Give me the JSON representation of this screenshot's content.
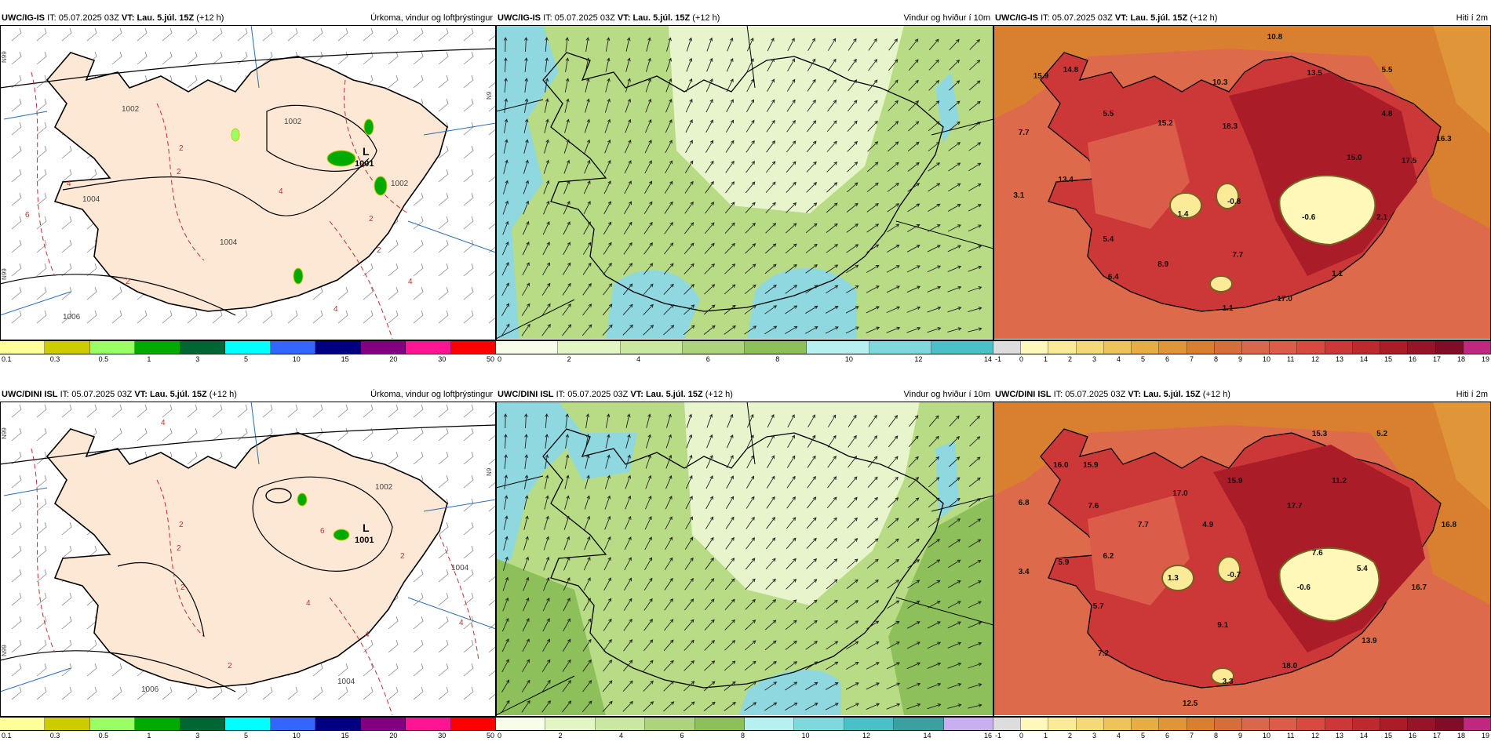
{
  "rows": [
    {
      "model": "UWC/IG-IS",
      "it_label": "IT:",
      "it_value": "05.07.2025 03Z",
      "vt_label": "VT:",
      "vt_value": "Lau. 5.júl. 15Z",
      "lead": "(+12 h)",
      "panels": [
        {
          "title": "Úrkoma, vindur og loftþrýstingur",
          "low_label": "L",
          "low_value": "1001",
          "isobars": [
            "1002",
            "1002",
            "1004",
            "1004",
            "1006",
            "1002"
          ],
          "temp_labels": [
            "2",
            "4",
            "6",
            "2",
            "4",
            "2",
            "4",
            "2",
            "2",
            "4"
          ],
          "grid_labels": [
            "N99",
            "N99",
            "N9"
          ],
          "legend_colors": [
            "#ffff99",
            "#cccc00",
            "#99ff66",
            "#00aa00",
            "#006633",
            "#00ffff",
            "#3366ff",
            "#000080",
            "#800080",
            "#ff1493",
            "#ff0000"
          ],
          "legend_ticks": [
            "0.1",
            "0.3",
            "0.5",
            "1",
            "3",
            "5",
            "10",
            "15",
            "20",
            "30",
            "50"
          ]
        },
        {
          "title": "Vindur og hviður í 10m",
          "legend_colors": [
            "#f7fde8",
            "#e4f5c4",
            "#cbe8a0",
            "#add47a",
            "#8dc05a",
            "#b7f0f0",
            "#7fd8dc",
            "#4cc0c8"
          ],
          "legend_ticks": [
            "0",
            "2",
            "4",
            "6",
            "8",
            "10",
            "12",
            "14"
          ]
        },
        {
          "title": "Hiti í 2m",
          "legend_colors": [
            "#dddddd",
            "#fff8b8",
            "#fbeb98",
            "#f5d878",
            "#efc35c",
            "#e8ac44",
            "#e09538",
            "#d88030",
            "#d46e3a",
            "#d9674a",
            "#dc5c4a",
            "#d84a40",
            "#cc3838",
            "#bc2a30",
            "#aa1c28",
            "#961428",
            "#800c28",
            "#c02880"
          ],
          "legend_ticks": [
            "-1",
            "0",
            "1",
            "2",
            "3",
            "4",
            "5",
            "6",
            "7",
            "8",
            "9",
            "10",
            "11",
            "12",
            "13",
            "14",
            "15",
            "16",
            "17",
            "18",
            "19"
          ],
          "values": [
            {
              "t": "10.8",
              "x": 0.55,
              "y": 0.025
            },
            {
              "t": "14.8",
              "x": 0.14,
              "y": 0.13
            },
            {
              "t": "15.9",
              "x": 0.08,
              "y": 0.15
            },
            {
              "t": "13.5",
              "x": 0.63,
              "y": 0.14
            },
            {
              "t": "5.5",
              "x": 0.78,
              "y": 0.13
            },
            {
              "t": "10.3",
              "x": 0.44,
              "y": 0.17
            },
            {
              "t": "5.5",
              "x": 0.22,
              "y": 0.27
            },
            {
              "t": "15.2",
              "x": 0.33,
              "y": 0.3
            },
            {
              "t": "18.3",
              "x": 0.46,
              "y": 0.31
            },
            {
              "t": "4.8",
              "x": 0.78,
              "y": 0.27
            },
            {
              "t": "7.7",
              "x": 0.05,
              "y": 0.33
            },
            {
              "t": "16.3",
              "x": 0.89,
              "y": 0.35
            },
            {
              "t": "15.0",
              "x": 0.71,
              "y": 0.41
            },
            {
              "t": "17.5",
              "x": 0.82,
              "y": 0.42
            },
            {
              "t": "13.4",
              "x": 0.13,
              "y": 0.48
            },
            {
              "t": "3.1",
              "x": 0.04,
              "y": 0.53
            },
            {
              "t": "-0.8",
              "x": 0.47,
              "y": 0.55
            },
            {
              "t": "1.4",
              "x": 0.37,
              "y": 0.59
            },
            {
              "t": "-0.6",
              "x": 0.62,
              "y": 0.6
            },
            {
              "t": "2.1",
              "x": 0.77,
              "y": 0.6
            },
            {
              "t": "5.4",
              "x": 0.22,
              "y": 0.67
            },
            {
              "t": "7.7",
              "x": 0.48,
              "y": 0.72
            },
            {
              "t": "8.9",
              "x": 0.33,
              "y": 0.75
            },
            {
              "t": "1.1",
              "x": 0.68,
              "y": 0.78
            },
            {
              "t": "6.4",
              "x": 0.23,
              "y": 0.79
            },
            {
              "t": "17.0",
              "x": 0.57,
              "y": 0.86
            },
            {
              "t": "1.1",
              "x": 0.46,
              "y": 0.89
            }
          ]
        }
      ]
    },
    {
      "model": "UWC/DINI ISL",
      "it_label": "IT:",
      "it_value": "05.07.2025 03Z",
      "vt_label": "VT:",
      "vt_value": "Lau. 5.júl. 15Z",
      "lead": "(+12 h)",
      "panels": [
        {
          "title": "Úrkoma, vindur og loftþrýstingur",
          "low_label": "L",
          "low_value": "1001",
          "isobars": [
            "1002",
            "1004",
            "1006",
            "1004"
          ],
          "temp_labels": [
            "2",
            "4",
            "6",
            "2",
            "4",
            "2",
            "4",
            "2",
            "4",
            "2"
          ],
          "grid_labels": [
            "N99",
            "N99",
            "N9"
          ],
          "legend_colors": [
            "#ffff99",
            "#cccc00",
            "#99ff66",
            "#00aa00",
            "#006633",
            "#00ffff",
            "#3366ff",
            "#000080",
            "#800080",
            "#ff1493",
            "#ff0000"
          ],
          "legend_ticks": [
            "0.1",
            "0.3",
            "0.5",
            "1",
            "3",
            "5",
            "10",
            "15",
            "20",
            "30",
            "50"
          ]
        },
        {
          "title": "Vindur og hviður í 10m",
          "legend_colors": [
            "#f7fde8",
            "#e4f5c4",
            "#cbe8a0",
            "#add47a",
            "#8dc05a",
            "#b7f0f0",
            "#7fd8dc",
            "#4cc0c8",
            "#3aa0a0",
            "#c8b0f0"
          ],
          "legend_ticks": [
            "0",
            "2",
            "4",
            "6",
            "8",
            "10",
            "12",
            "14",
            "16"
          ]
        },
        {
          "title": "Hiti í 2m",
          "legend_colors": [
            "#dddddd",
            "#fff8b8",
            "#fbeb98",
            "#f5d878",
            "#efc35c",
            "#e8ac44",
            "#e09538",
            "#d88030",
            "#d46e3a",
            "#d9674a",
            "#dc5c4a",
            "#d84a40",
            "#cc3838",
            "#bc2a30",
            "#aa1c28",
            "#961428",
            "#800c28",
            "#c02880"
          ],
          "legend_ticks": [
            "-1",
            "0",
            "1",
            "2",
            "3",
            "4",
            "5",
            "6",
            "7",
            "8",
            "9",
            "10",
            "11",
            "12",
            "13",
            "14",
            "15",
            "16",
            "17",
            "18",
            "19"
          ],
          "values": [
            {
              "t": "15.3",
              "x": 0.64,
              "y": 0.09
            },
            {
              "t": "5.2",
              "x": 0.77,
              "y": 0.09
            },
            {
              "t": "16.0",
              "x": 0.12,
              "y": 0.19
            },
            {
              "t": "15.9",
              "x": 0.18,
              "y": 0.19
            },
            {
              "t": "15.9",
              "x": 0.47,
              "y": 0.24
            },
            {
              "t": "11.2",
              "x": 0.68,
              "y": 0.24
            },
            {
              "t": "17.0",
              "x": 0.36,
              "y": 0.28
            },
            {
              "t": "6.8",
              "x": 0.05,
              "y": 0.31
            },
            {
              "t": "7.6",
              "x": 0.19,
              "y": 0.32
            },
            {
              "t": "17.7",
              "x": 0.59,
              "y": 0.32
            },
            {
              "t": "7.7",
              "x": 0.29,
              "y": 0.38
            },
            {
              "t": "4.9",
              "x": 0.42,
              "y": 0.38
            },
            {
              "t": "16.8",
              "x": 0.9,
              "y": 0.38
            },
            {
              "t": "7.6",
              "x": 0.64,
              "y": 0.47
            },
            {
              "t": "6.2",
              "x": 0.22,
              "y": 0.48
            },
            {
              "t": "5.9",
              "x": 0.13,
              "y": 0.5
            },
            {
              "t": "5.4",
              "x": 0.73,
              "y": 0.52
            },
            {
              "t": "3.4",
              "x": 0.05,
              "y": 0.53
            },
            {
              "t": "-0.7",
              "x": 0.47,
              "y": 0.54
            },
            {
              "t": "1.3",
              "x": 0.35,
              "y": 0.55
            },
            {
              "t": "-0.6",
              "x": 0.61,
              "y": 0.58
            },
            {
              "t": "16.7",
              "x": 0.84,
              "y": 0.58
            },
            {
              "t": "5.7",
              "x": 0.2,
              "y": 0.64
            },
            {
              "t": "9.1",
              "x": 0.45,
              "y": 0.7
            },
            {
              "t": "13.9",
              "x": 0.74,
              "y": 0.75
            },
            {
              "t": "7.2",
              "x": 0.21,
              "y": 0.79
            },
            {
              "t": "18.0",
              "x": 0.58,
              "y": 0.83
            },
            {
              "t": "3.3",
              "x": 0.46,
              "y": 0.88
            },
            {
              "t": "12.5",
              "x": 0.38,
              "y": 0.95
            }
          ]
        }
      ]
    }
  ]
}
